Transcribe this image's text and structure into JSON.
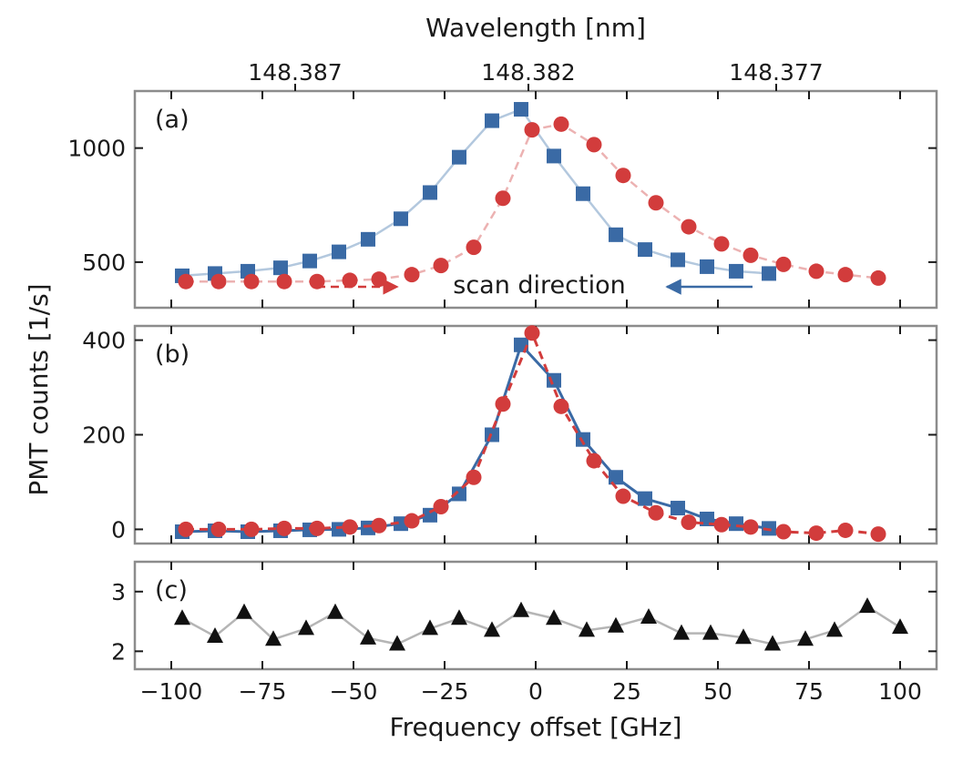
{
  "chart_data": {
    "type": "scatter",
    "top_axis": {
      "label": "Wavelength [nm]",
      "ticks": [
        {
          "freq": -66,
          "label": "148.387"
        },
        {
          "freq": -2,
          "label": "148.382"
        },
        {
          "freq": 66,
          "label": "148.377"
        }
      ]
    },
    "shared_ylabel": "PMT counts [1/s]",
    "xlabel": "Frequency offset [GHz]",
    "xlim": [
      -110,
      110
    ],
    "xticks": [
      -100,
      -75,
      -50,
      -25,
      0,
      25,
      50,
      75,
      100
    ],
    "xtick_labels": [
      "−100",
      "−75",
      "−50",
      "−25",
      "0",
      "25",
      "50",
      "75",
      "100"
    ],
    "panels": [
      {
        "id": "a",
        "label": "(a)",
        "ylim": [
          300,
          1250
        ],
        "yticks": [
          500,
          1000
        ],
        "ytick_labels": [
          "500",
          "1000"
        ],
        "annotation": "scan direction",
        "series": [
          {
            "name": "blue-squares",
            "color": "#3a6aa5",
            "line_color": "#b3c8de",
            "marker": "square",
            "line": "solid",
            "x": [
              -97,
              -88,
              -79,
              -70,
              -62,
              -54,
              -46,
              -37,
              -29,
              -21,
              -12,
              -4,
              5,
              13,
              22,
              30,
              39,
              47,
              55,
              64
            ],
            "y": [
              440,
              450,
              460,
              475,
              505,
              545,
              600,
              690,
              805,
              960,
              1120,
              1170,
              965,
              800,
              620,
              555,
              510,
              480,
              460,
              450
            ]
          },
          {
            "name": "red-circles",
            "color": "#d23c3c",
            "line_color": "#ecb2b2",
            "marker": "circle",
            "line": "dashed",
            "x": [
              -96,
              -87,
              -78,
              -69,
              -60,
              -51,
              -43,
              -34,
              -26,
              -17,
              -9,
              -1,
              7,
              16,
              24,
              33,
              42,
              51,
              59,
              68,
              77,
              85,
              94
            ],
            "y": [
              415,
              415,
              415,
              415,
              415,
              420,
              425,
              445,
              485,
              565,
              780,
              1080,
              1105,
              1015,
              880,
              760,
              655,
              580,
              530,
              490,
              460,
              445,
              430
            ]
          }
        ]
      },
      {
        "id": "b",
        "label": "(b)",
        "ylim": [
          -30,
          430
        ],
        "yticks": [
          0,
          200,
          400
        ],
        "ytick_labels": [
          "0",
          "200",
          "400"
        ],
        "series": [
          {
            "name": "blue-squares",
            "color": "#3a6aa5",
            "line_color": "#3a6aa5",
            "marker": "square",
            "line": "solid",
            "x": [
              -97,
              -88,
              -79,
              -70,
              -62,
              -54,
              -46,
              -37,
              -29,
              -21,
              -12,
              -4,
              5,
              13,
              22,
              30,
              39,
              47,
              55,
              64
            ],
            "y": [
              -5,
              -3,
              -5,
              -3,
              -1,
              0,
              3,
              12,
              30,
              75,
              200,
              390,
              315,
              190,
              110,
              65,
              45,
              22,
              12,
              2
            ]
          },
          {
            "name": "red-circles",
            "color": "#d23c3c",
            "line_color": "#d23c3c",
            "marker": "circle",
            "line": "dashed",
            "x": [
              -96,
              -87,
              -78,
              -69,
              -60,
              -51,
              -43,
              -34,
              -26,
              -17,
              -9,
              -1,
              7,
              16,
              24,
              33,
              42,
              51,
              59,
              68,
              77,
              85,
              94
            ],
            "y": [
              0,
              0,
              0,
              2,
              2,
              5,
              8,
              18,
              48,
              110,
              265,
              415,
              260,
              145,
              70,
              35,
              15,
              10,
              5,
              -5,
              -8,
              -2,
              -10
            ]
          }
        ]
      },
      {
        "id": "c",
        "label": "(c)",
        "ylim": [
          1.7,
          3.5
        ],
        "yticks": [
          2,
          3
        ],
        "ytick_labels": [
          "2",
          "3"
        ],
        "series": [
          {
            "name": "black-triangles",
            "color": "#111111",
            "line_color": "#b5b5b5",
            "marker": "triangle",
            "line": "solid",
            "x": [
              -97,
              -88,
              -80,
              -72,
              -63,
              -55,
              -46,
              -38,
              -29,
              -21,
              -12,
              -4,
              5,
              14,
              22,
              31,
              40,
              48,
              57,
              65,
              74,
              82,
              91,
              100
            ],
            "y": [
              2.55,
              2.25,
              2.65,
              2.2,
              2.38,
              2.65,
              2.22,
              2.12,
              2.38,
              2.55,
              2.35,
              2.68,
              2.55,
              2.35,
              2.42,
              2.57,
              2.3,
              2.3,
              2.23,
              2.12,
              2.2,
              2.35,
              2.75,
              2.4
            ]
          }
        ]
      }
    ]
  }
}
